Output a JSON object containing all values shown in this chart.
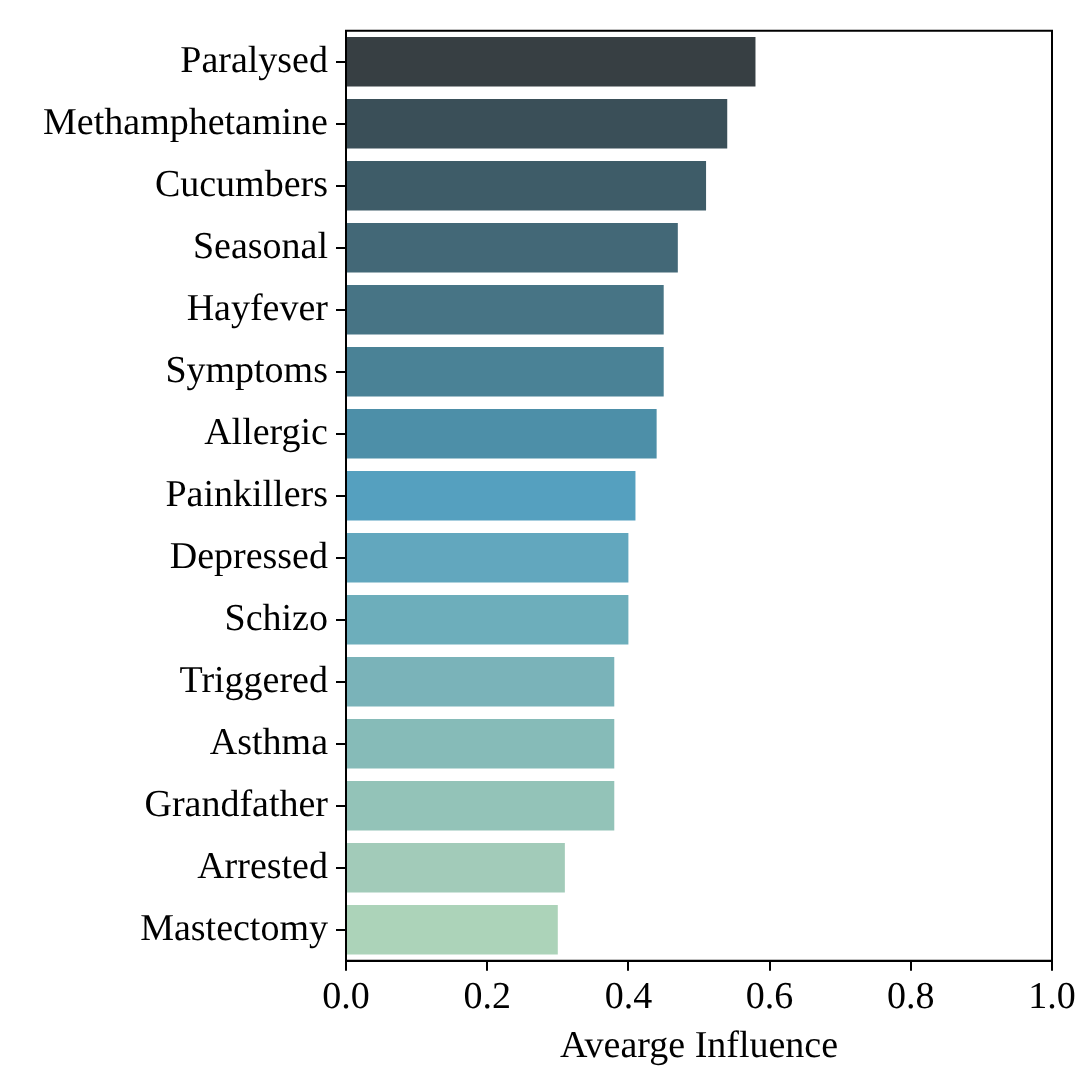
{
  "chart_data": {
    "type": "bar",
    "orientation": "horizontal",
    "xlabel": "Avearge Influence",
    "categories": [
      "Paralysed",
      "Methamphetamine",
      "Cucumbers",
      "Seasonal",
      "Hayfever",
      "Symptoms",
      "Allergic",
      "Painkillers",
      "Depressed",
      "Schizo",
      "Triggered",
      "Asthma",
      "Grandfather",
      "Arrested",
      "Mastectomy"
    ],
    "values": [
      0.58,
      0.54,
      0.51,
      0.47,
      0.45,
      0.45,
      0.44,
      0.41,
      0.4,
      0.4,
      0.38,
      0.38,
      0.38,
      0.31,
      0.3
    ],
    "colors": [
      "#373f43",
      "#3a4f58",
      "#3e5c68",
      "#436877",
      "#477485",
      "#4a8296",
      "#4d8fa8",
      "#55a0bf",
      "#62a7be",
      "#6daebb",
      "#7ab3b9",
      "#86bbb8",
      "#93c3b8",
      "#a2cbb9",
      "#acd3b9"
    ],
    "xlim": [
      0,
      1
    ],
    "xticks": [
      {
        "value": 0,
        "label": "0.0"
      },
      0.2,
      0.4,
      0.6,
      0.8,
      {
        "value": 1,
        "label": "1.0"
      }
    ],
    "grid": false,
    "legend": false
  }
}
